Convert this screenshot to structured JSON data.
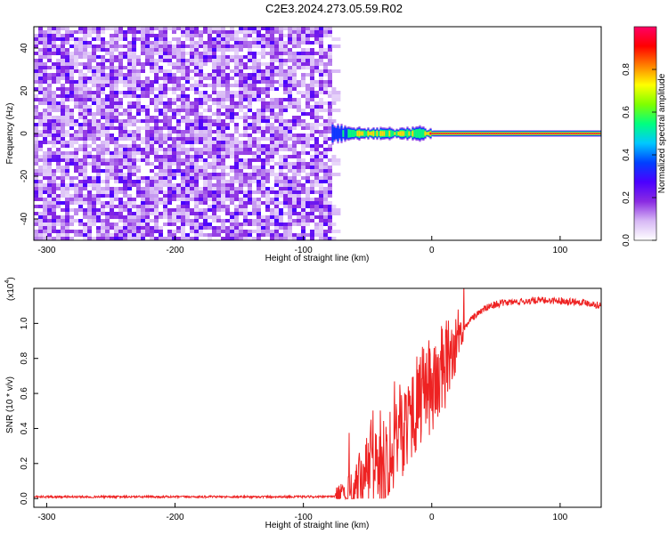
{
  "figure": {
    "title": "C2E3.2024.273.05.59.R02"
  },
  "chart_data": [
    {
      "type": "heatmap",
      "id": "spectrogram",
      "xlabel": "Height of straight line (km)",
      "ylabel": "Frequency (Hz)",
      "xlim": [
        -310,
        132
      ],
      "ylim": [
        -50,
        50
      ],
      "xticks": [
        -300,
        -200,
        -100,
        0,
        100
      ],
      "xticklabels": [
        "-300",
        "-200",
        "-100",
        "0",
        "100"
      ],
      "yticks": [
        -40,
        -20,
        0,
        20,
        40
      ],
      "yticklabels": [
        "-40",
        "-20",
        "0",
        "20",
        "40"
      ],
      "noise_region_x": [
        -310,
        -78
      ],
      "signal": {
        "description_points": [
          {
            "x": -78,
            "spread_hz": 4.0,
            "amplitude": 0.35
          },
          {
            "x": -65,
            "spread_hz": 3.0,
            "amplitude": 0.6
          },
          {
            "x": -50,
            "spread_hz": 2.0,
            "amplitude": 0.85
          },
          {
            "x": -40,
            "spread_hz": 2.5,
            "amplitude": 0.7
          },
          {
            "x": -25,
            "spread_hz": 2.0,
            "amplitude": 0.8
          },
          {
            "x": -10,
            "spread_hz": 3.0,
            "amplitude": 0.65
          },
          {
            "x": 0,
            "spread_hz": 1.5,
            "amplitude": 1.0
          },
          {
            "x": 132,
            "spread_hz": 1.5,
            "amplitude": 1.0
          }
        ]
      },
      "colorbar": {
        "label": "Normalized spectral amplitude",
        "range": [
          0,
          1
        ],
        "ticks": [
          0.0,
          0.2,
          0.4,
          0.6,
          0.8
        ],
        "ticklabels": [
          "0.0",
          "0.2",
          "0.4",
          "0.6",
          "0.8"
        ],
        "colors": [
          "#ffffff",
          "#d7b8f5",
          "#8a2be2",
          "#4b00ff",
          "#0040ff",
          "#00c8ff",
          "#00ff80",
          "#7fff00",
          "#ffff00",
          "#ff8000",
          "#ff0000",
          "#ff0066"
        ]
      }
    },
    {
      "type": "line",
      "id": "snr",
      "xlabel": "Height of straight line (km)",
      "ylabel": "SNR (10 * v/v)",
      "scale_label": "(x10",
      "scale_exponent": "4",
      "xlim": [
        -310,
        132
      ],
      "ylim": [
        -0.05,
        1.2
      ],
      "xticks": [
        -300,
        -200,
        -100,
        0,
        100
      ],
      "xticklabels": [
        "-300",
        "-200",
        "-100",
        "0",
        "100"
      ],
      "yticks": [
        0.0,
        0.2,
        0.4,
        0.6,
        0.8,
        1.0
      ],
      "yticklabels": [
        "0.0",
        "0.2",
        "0.4",
        "0.6",
        "0.8",
        "1.0"
      ],
      "color": "#ee2222",
      "series": [
        {
          "x": [
            -310,
            -250,
            -200,
            -150,
            -100,
            -80,
            -70,
            -60,
            -55,
            -50,
            -45,
            -40,
            -35,
            -30,
            -25,
            -20,
            -15,
            -10,
            -5,
            0,
            5,
            10,
            15,
            20,
            25,
            30,
            40,
            50,
            60,
            80,
            100,
            120,
            132
          ],
          "values": [
            0.01,
            0.01,
            0.01,
            0.01,
            0.01,
            0.01,
            0.02,
            0.05,
            0.15,
            0.2,
            0.25,
            0.28,
            0.3,
            0.38,
            0.43,
            0.5,
            0.55,
            0.62,
            0.66,
            0.7,
            0.74,
            0.8,
            0.86,
            0.92,
            0.97,
            1.02,
            1.08,
            1.11,
            1.12,
            1.13,
            1.13,
            1.12,
            1.1
          ]
        }
      ]
    }
  ]
}
